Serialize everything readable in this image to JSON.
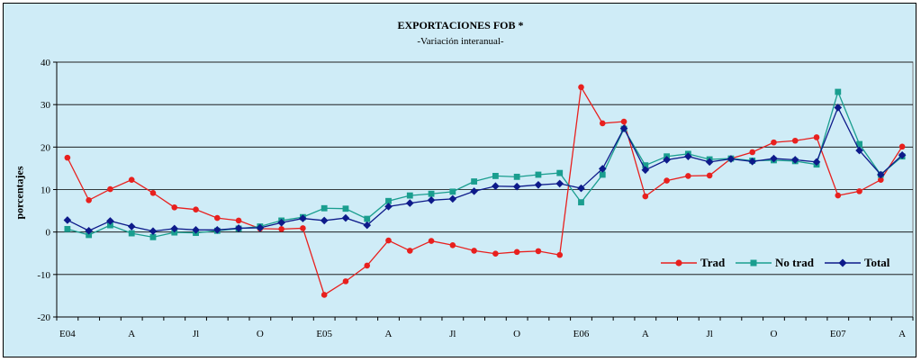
{
  "colors": {
    "background": "#cfecf7",
    "trad": "#e8201e",
    "no_trad": "#1a9e8f",
    "total": "#0d1a8a"
  },
  "chart_data": {
    "type": "line",
    "title": "EXPORTACIONES FOB *",
    "subtitle": "-Variación interanual-",
    "ylabel": "porcentajes",
    "xlabel": "",
    "ylim": [
      -20,
      40
    ],
    "yticks": [
      -20,
      -10,
      0,
      10,
      20,
      30,
      40
    ],
    "grid": true,
    "legend_position": "bottom-right",
    "x_tick_labels": [
      {
        "index": 0,
        "label": "E04"
      },
      {
        "index": 3,
        "label": "A"
      },
      {
        "index": 6,
        "label": "Jl"
      },
      {
        "index": 9,
        "label": "O"
      },
      {
        "index": 12,
        "label": "E05"
      },
      {
        "index": 15,
        "label": "A"
      },
      {
        "index": 18,
        "label": "Jl"
      },
      {
        "index": 21,
        "label": "O"
      },
      {
        "index": 24,
        "label": "E06"
      },
      {
        "index": 27,
        "label": "A"
      },
      {
        "index": 30,
        "label": "Jl"
      },
      {
        "index": 33,
        "label": "O"
      },
      {
        "index": 36,
        "label": "E07"
      },
      {
        "index": 39,
        "label": "A"
      }
    ],
    "series": [
      {
        "name": "Trad",
        "marker": "circle",
        "values": [
          17.5,
          7.5,
          10.1,
          12.3,
          9.2,
          5.8,
          5.3,
          3.3,
          2.7,
          0.8,
          0.7,
          0.9,
          -14.8,
          -11.6,
          -7.9,
          -2.0,
          -4.4,
          -2.1,
          -3.1,
          -4.4,
          -5.1,
          -4.7,
          -4.5,
          -5.4,
          34.1,
          25.6,
          26.0,
          8.4,
          12.1,
          13.2,
          13.3,
          17.3,
          18.8,
          21.1,
          21.5,
          22.3,
          8.6,
          9.6,
          12.3,
          20.1
        ]
      },
      {
        "name": "No trad",
        "marker": "square",
        "values": [
          0.7,
          -0.7,
          1.6,
          -0.3,
          -1.2,
          -0.1,
          -0.2,
          0.3,
          0.8,
          1.3,
          2.7,
          3.5,
          5.6,
          5.5,
          3.1,
          7.3,
          8.6,
          9.0,
          9.5,
          11.9,
          13.2,
          13.0,
          13.5,
          13.9,
          7.0,
          13.5,
          24.3,
          15.7,
          17.8,
          18.4,
          17.1,
          17.3,
          16.8,
          16.9,
          16.7,
          15.9,
          33.0,
          20.7,
          13.5,
          17.8
        ]
      },
      {
        "name": "Total",
        "marker": "diamond",
        "values": [
          2.8,
          0.3,
          2.6,
          1.3,
          0.2,
          0.8,
          0.5,
          0.5,
          0.9,
          1.0,
          2.2,
          3.2,
          2.7,
          3.3,
          1.6,
          6.0,
          6.8,
          7.5,
          7.8,
          9.6,
          10.8,
          10.7,
          11.1,
          11.4,
          10.3,
          14.9,
          24.4,
          14.6,
          17.0,
          17.8,
          16.5,
          17.2,
          16.6,
          17.3,
          17.0,
          16.5,
          29.3,
          19.2,
          13.5,
          18.1
        ]
      }
    ]
  }
}
